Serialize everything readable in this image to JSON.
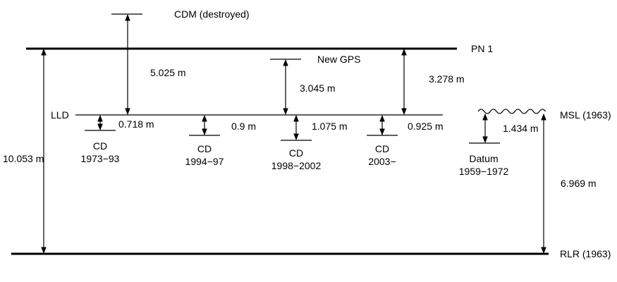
{
  "levels": {
    "pn1": "PN 1",
    "lld": "LLD",
    "msl": "MSL (1963)",
    "rlr": "RLR (1963)"
  },
  "benchmarks": {
    "cdm": "CDM (destroyed)",
    "new_gps": "New GPS"
  },
  "chart_datums": [
    {
      "name": "CD",
      "period": "1973−93"
    },
    {
      "name": "CD",
      "period": "1994−97"
    },
    {
      "name": "CD",
      "period": "1998−2002"
    },
    {
      "name": "CD",
      "period": "2003−"
    }
  ],
  "datum": {
    "name": "Datum",
    "period": "1959−1972"
  },
  "measurements": {
    "cdm_to_lld": "5.025 m",
    "gps_to_lld": "3.045 m",
    "pn1_to_lld": "3.278 m",
    "pn1_to_rlr": "10.053 m",
    "lld_to_cd_1973": "0.718 m",
    "lld_to_cd_1994": "0.9 m",
    "lld_to_cd_1998": "1.075 m",
    "lld_to_cd_2003": "0.925 m",
    "msl_to_datum": "1.434 m",
    "msl_to_rlr": "6.969 m"
  },
  "icons": {
    "msl_wave": "wave-icon"
  }
}
